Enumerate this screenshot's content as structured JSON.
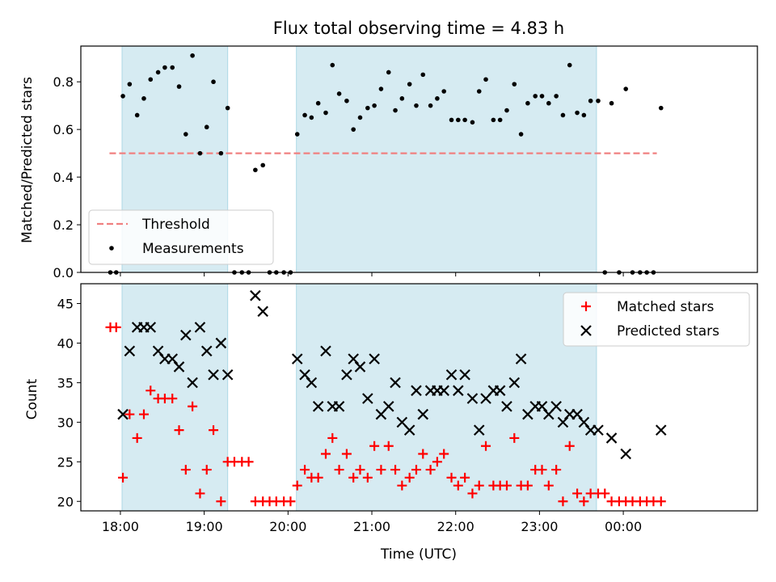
{
  "chart_data": [
    {
      "type": "scatter",
      "title": "Flux total observing time = 4.83 h",
      "ylabel": "Matched/Predicted stars",
      "ylim": [
        0,
        0.95
      ],
      "yticks": [
        "0.0",
        "0.2",
        "0.4",
        "0.6",
        "0.8"
      ],
      "ytick_values": [
        0,
        0.2,
        0.4,
        0.6,
        0.8
      ],
      "xlim": [
        -0.472,
        7.6
      ],
      "grid": false,
      "shaded_spans": [
        [
          0.02,
          1.28
        ],
        [
          2.1,
          5.68
        ]
      ],
      "shade_color": "#add8e6",
      "legend_location": "lower-left",
      "threshold": {
        "name": "Threshold",
        "value": 0.5,
        "x_range": [
          -0.13,
          6.4
        ],
        "color": "#f08080"
      },
      "series": [
        {
          "name": "Measurements",
          "marker": "dot",
          "color": "#000000",
          "x": [
            -0.12,
            -0.05,
            0.03,
            0.11,
            0.2,
            0.28,
            0.36,
            0.45,
            0.53,
            0.62,
            0.7,
            0.78,
            0.86,
            0.95,
            1.03,
            1.11,
            1.2,
            1.28,
            1.36,
            1.45,
            1.53,
            1.61,
            1.7,
            1.78,
            1.86,
            1.95,
            2.03,
            2.11,
            2.2,
            2.28,
            2.36,
            2.45,
            2.53,
            2.61,
            2.7,
            2.78,
            2.86,
            2.95,
            3.03,
            3.11,
            3.2,
            3.28,
            3.36,
            3.45,
            3.53,
            3.61,
            3.7,
            3.78,
            3.86,
            3.95,
            4.03,
            4.11,
            4.2,
            4.28,
            4.36,
            4.45,
            4.53,
            4.61,
            4.7,
            4.78,
            4.86,
            4.95,
            5.03,
            5.11,
            5.2,
            5.28,
            5.36,
            5.45,
            5.53,
            5.61,
            5.7,
            5.78,
            5.86,
            5.95,
            6.03,
            6.11,
            6.2,
            6.28,
            6.36,
            6.45
          ],
          "y": [
            0,
            0,
            0.74,
            0.79,
            0.66,
            0.73,
            0.81,
            0.84,
            0.86,
            0.86,
            0.78,
            0.58,
            0.91,
            0.5,
            0.61,
            0.8,
            0.5,
            0.69,
            0,
            0,
            0,
            0.43,
            0.45,
            0,
            0,
            0,
            0,
            0.58,
            0.66,
            0.65,
            0.71,
            0.67,
            0.87,
            0.75,
            0.72,
            0.6,
            0.65,
            0.69,
            0.7,
            0.77,
            0.84,
            0.68,
            0.73,
            0.79,
            0.7,
            0.83,
            0.7,
            0.73,
            0.76,
            0.64,
            0.64,
            0.64,
            0.63,
            0.76,
            0.81,
            0.64,
            0.64,
            0.68,
            0.79,
            0.58,
            0.71,
            0.74,
            0.74,
            0.71,
            0.74,
            0.66,
            0.87,
            0.67,
            0.66,
            0.72,
            0.72,
            0,
            0.71,
            0,
            0.77,
            0,
            0,
            0,
            0,
            0.69
          ]
        }
      ]
    },
    {
      "type": "scatter",
      "xlabel": "Time (UTC)",
      "ylabel": "Count",
      "ylim": [
        18.8,
        47.5
      ],
      "yticks": [
        "20",
        "25",
        "30",
        "35",
        "40",
        "45"
      ],
      "ytick_values": [
        20,
        25,
        30,
        35,
        40,
        45
      ],
      "xlim": [
        -0.472,
        7.6
      ],
      "xticks": [
        "18:00",
        "19:00",
        "20:00",
        "21:00",
        "22:00",
        "23:00",
        "00:00"
      ],
      "xtick_values": [
        0,
        1,
        2,
        3,
        4,
        5,
        6
      ],
      "grid": false,
      "shaded_spans": [
        [
          0.02,
          1.28
        ],
        [
          2.1,
          5.68
        ]
      ],
      "shade_color": "#add8e6",
      "legend_location": "upper-right",
      "series": [
        {
          "name": "Matched stars",
          "marker": "plus",
          "color": "#ff0000",
          "x": [
            -0.12,
            -0.05,
            0.03,
            0.11,
            0.2,
            0.28,
            0.36,
            0.45,
            0.53,
            0.62,
            0.7,
            0.78,
            0.86,
            0.95,
            1.03,
            1.11,
            1.2,
            1.28,
            1.36,
            1.45,
            1.53,
            1.61,
            1.7,
            1.78,
            1.86,
            1.95,
            2.03,
            2.11,
            2.2,
            2.28,
            2.36,
            2.45,
            2.53,
            2.61,
            2.7,
            2.78,
            2.86,
            2.95,
            3.03,
            3.11,
            3.2,
            3.28,
            3.36,
            3.45,
            3.53,
            3.61,
            3.7,
            3.78,
            3.86,
            3.95,
            4.03,
            4.11,
            4.2,
            4.28,
            4.36,
            4.45,
            4.53,
            4.61,
            4.7,
            4.78,
            4.86,
            4.95,
            5.03,
            5.11,
            5.2,
            5.28,
            5.36,
            5.45,
            5.53,
            5.61,
            5.7,
            5.78,
            5.86,
            5.95,
            6.03,
            6.11,
            6.2,
            6.28,
            6.36,
            6.45
          ],
          "y": [
            42,
            42,
            23,
            31,
            28,
            31,
            34,
            33,
            33,
            33,
            29,
            24,
            32,
            21,
            24,
            29,
            20,
            25,
            25,
            25,
            25,
            20,
            20,
            20,
            20,
            20,
            20,
            22,
            24,
            23,
            23,
            26,
            28,
            24,
            26,
            23,
            24,
            23,
            27,
            24,
            27,
            24,
            22,
            23,
            24,
            26,
            24,
            25,
            26,
            23,
            22,
            23,
            21,
            22,
            27,
            22,
            22,
            22,
            28,
            22,
            22,
            24,
            24,
            22,
            24,
            20,
            27,
            21,
            20,
            21,
            21,
            21,
            20,
            20,
            20,
            20,
            20,
            20,
            20,
            20
          ]
        },
        {
          "name": "Predicted stars",
          "marker": "x",
          "color": "#000000",
          "x": [
            0.03,
            0.11,
            0.2,
            0.28,
            0.36,
            0.45,
            0.53,
            0.62,
            0.7,
            0.78,
            0.86,
            0.95,
            1.03,
            1.11,
            1.2,
            1.28,
            1.61,
            1.7,
            2.11,
            2.2,
            2.28,
            2.36,
            2.45,
            2.53,
            2.61,
            2.7,
            2.78,
            2.86,
            2.95,
            3.03,
            3.11,
            3.2,
            3.28,
            3.36,
            3.45,
            3.53,
            3.61,
            3.7,
            3.78,
            3.86,
            3.95,
            4.03,
            4.11,
            4.2,
            4.28,
            4.36,
            4.45,
            4.53,
            4.61,
            4.7,
            4.78,
            4.86,
            4.95,
            5.03,
            5.11,
            5.2,
            5.28,
            5.36,
            5.45,
            5.53,
            5.61,
            5.7,
            5.86,
            6.03,
            6.45
          ],
          "y": [
            31,
            39,
            42,
            42,
            42,
            39,
            38,
            38,
            37,
            41,
            35,
            42,
            39,
            36,
            40,
            36,
            46,
            44,
            38,
            36,
            35,
            32,
            39,
            32,
            32,
            36,
            38,
            37,
            33,
            38,
            31,
            32,
            35,
            30,
            29,
            34,
            31,
            34,
            34,
            34,
            36,
            34,
            36,
            33,
            29,
            33,
            34,
            34,
            32,
            35,
            38,
            31,
            32,
            32,
            31,
            32,
            30,
            31,
            31,
            30,
            29,
            29,
            28,
            26,
            29
          ]
        }
      ]
    }
  ]
}
